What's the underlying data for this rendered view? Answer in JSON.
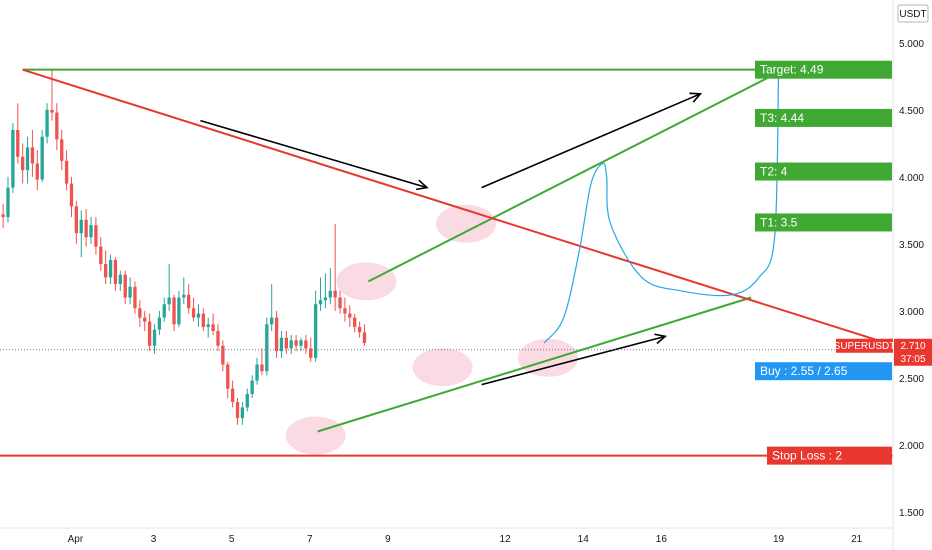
{
  "chart_data": {
    "type": "candlestick",
    "currency_label": "USDT",
    "ylim": [
      1.38,
      5.32
    ],
    "y_ticks": [
      {
        "value": 5.0,
        "label": "5.000"
      },
      {
        "value": 4.5,
        "label": "4.500"
      },
      {
        "value": 4.0,
        "label": "4.000"
      },
      {
        "value": 3.5,
        "label": "3.500"
      },
      {
        "value": 3.0,
        "label": "3.000"
      },
      {
        "value": 2.5,
        "label": "2.500"
      },
      {
        "value": 2.0,
        "label": "2.000"
      },
      {
        "value": 1.5,
        "label": "1.500"
      }
    ],
    "x_ticks": [
      {
        "day": 1,
        "label": "Apr"
      },
      {
        "day": 3,
        "label": "3"
      },
      {
        "day": 5,
        "label": "5"
      },
      {
        "day": 7,
        "label": "7"
      },
      {
        "day": 9,
        "label": "9"
      },
      {
        "day": 12,
        "label": "12"
      },
      {
        "day": 14,
        "label": "14"
      },
      {
        "day": 16,
        "label": "16"
      },
      {
        "day": 19,
        "label": "19"
      },
      {
        "day": 21,
        "label": "21"
      }
    ],
    "xlim_days": [
      -0.93,
      21.93
    ],
    "candle_interval_days": 0.125,
    "candles_start_day": -0.85,
    "candles": [
      [
        3.72,
        3.8,
        3.62,
        3.7
      ],
      [
        3.7,
        4.0,
        3.66,
        3.92
      ],
      [
        3.92,
        4.4,
        3.88,
        4.35
      ],
      [
        4.35,
        4.55,
        4.1,
        4.15
      ],
      [
        4.15,
        4.25,
        3.95,
        4.05
      ],
      [
        4.05,
        4.3,
        3.95,
        4.22
      ],
      [
        4.22,
        4.35,
        4.0,
        4.1
      ],
      [
        4.1,
        4.2,
        3.9,
        3.98
      ],
      [
        3.98,
        4.35,
        3.96,
        4.3
      ],
      [
        4.3,
        4.55,
        4.25,
        4.5
      ],
      [
        4.5,
        4.8,
        4.42,
        4.48
      ],
      [
        4.48,
        4.55,
        4.2,
        4.28
      ],
      [
        4.28,
        4.35,
        4.05,
        4.12
      ],
      [
        4.12,
        4.2,
        3.9,
        3.95
      ],
      [
        3.95,
        4.0,
        3.7,
        3.78
      ],
      [
        3.78,
        3.82,
        3.5,
        3.58
      ],
      [
        3.58,
        3.75,
        3.4,
        3.68
      ],
      [
        3.68,
        3.76,
        3.48,
        3.55
      ],
      [
        3.55,
        3.7,
        3.5,
        3.64
      ],
      [
        3.64,
        3.7,
        3.42,
        3.48
      ],
      [
        3.48,
        3.55,
        3.3,
        3.35
      ],
      [
        3.35,
        3.45,
        3.2,
        3.25
      ],
      [
        3.25,
        3.42,
        3.2,
        3.38
      ],
      [
        3.38,
        3.4,
        3.15,
        3.2
      ],
      [
        3.2,
        3.3,
        3.15,
        3.27
      ],
      [
        3.27,
        3.3,
        3.05,
        3.1
      ],
      [
        3.1,
        3.25,
        3.05,
        3.18
      ],
      [
        3.18,
        3.22,
        2.98,
        3.02
      ],
      [
        3.02,
        3.08,
        2.88,
        2.95
      ],
      [
        2.95,
        3.0,
        2.85,
        2.92
      ],
      [
        2.92,
        2.98,
        2.7,
        2.74
      ],
      [
        2.74,
        2.9,
        2.68,
        2.86
      ],
      [
        2.86,
        3.0,
        2.82,
        2.95
      ],
      [
        2.95,
        3.1,
        2.92,
        3.05
      ],
      [
        3.05,
        3.35,
        3.0,
        3.1
      ],
      [
        3.1,
        3.12,
        2.85,
        2.9
      ],
      [
        2.9,
        3.15,
        2.88,
        3.1
      ],
      [
        3.1,
        3.25,
        3.05,
        3.12
      ],
      [
        3.12,
        3.2,
        2.98,
        3.02
      ],
      [
        3.02,
        3.1,
        2.92,
        2.95
      ],
      [
        2.95,
        3.05,
        2.88,
        2.98
      ],
      [
        2.98,
        3.02,
        2.85,
        2.88
      ],
      [
        2.88,
        2.95,
        2.8,
        2.9
      ],
      [
        2.9,
        2.98,
        2.82,
        2.85
      ],
      [
        2.85,
        2.9,
        2.7,
        2.74
      ],
      [
        2.74,
        2.78,
        2.55,
        2.6
      ],
      [
        2.6,
        2.62,
        2.35,
        2.42
      ],
      [
        2.42,
        2.48,
        2.28,
        2.32
      ],
      [
        2.32,
        2.35,
        2.15,
        2.2
      ],
      [
        2.2,
        2.32,
        2.15,
        2.28
      ],
      [
        2.28,
        2.42,
        2.25,
        2.38
      ],
      [
        2.38,
        2.52,
        2.35,
        2.48
      ],
      [
        2.48,
        2.65,
        2.45,
        2.6
      ],
      [
        2.6,
        2.72,
        2.52,
        2.55
      ],
      [
        2.55,
        2.95,
        2.52,
        2.9
      ],
      [
        2.9,
        3.2,
        2.85,
        2.95
      ],
      [
        2.95,
        3.0,
        2.65,
        2.7
      ],
      [
        2.7,
        2.85,
        2.65,
        2.8
      ],
      [
        2.8,
        2.85,
        2.68,
        2.72
      ],
      [
        2.72,
        2.82,
        2.68,
        2.78
      ],
      [
        2.78,
        2.82,
        2.7,
        2.74
      ],
      [
        2.74,
        2.8,
        2.7,
        2.78
      ],
      [
        2.78,
        2.82,
        2.68,
        2.72
      ],
      [
        2.72,
        2.8,
        2.62,
        2.65
      ],
      [
        2.65,
        3.15,
        2.62,
        3.05
      ],
      [
        3.05,
        3.25,
        3.0,
        3.08
      ],
      [
        3.08,
        3.28,
        3.02,
        3.1
      ],
      [
        3.1,
        3.32,
        3.05,
        3.15
      ],
      [
        3.15,
        3.65,
        3.0,
        3.1
      ],
      [
        3.1,
        3.15,
        2.98,
        3.02
      ],
      [
        3.02,
        3.1,
        2.92,
        2.98
      ],
      [
        2.98,
        3.04,
        2.88,
        2.95
      ],
      [
        2.95,
        2.98,
        2.84,
        2.88
      ],
      [
        2.88,
        2.92,
        2.8,
        2.84
      ],
      [
        2.84,
        2.9,
        2.74,
        2.76
      ]
    ]
  },
  "lines": [
    {
      "name": "target-level-line",
      "color": "#3fa933",
      "points": [
        [
          -0.35,
          4.8
        ],
        [
          19.2,
          4.8
        ]
      ]
    },
    {
      "name": "upper-channel-line",
      "color": "#3fa933",
      "points": [
        [
          8.5,
          3.22
        ],
        [
          19.0,
          4.78
        ]
      ]
    },
    {
      "name": "lower-support-line",
      "color": "#3fa933",
      "points": [
        [
          7.2,
          2.1
        ],
        [
          18.3,
          3.1
        ]
      ]
    },
    {
      "name": "descending-resistance-line",
      "color": "#e9372f",
      "points": [
        [
          -0.35,
          4.8
        ],
        [
          22.2,
          2.72
        ]
      ]
    },
    {
      "name": "stop-loss-line",
      "color": "#e9372f",
      "points": [
        [
          -0.93,
          1.92
        ],
        [
          22.2,
          1.92
        ]
      ]
    }
  ],
  "projection_path": {
    "color": "#29a8e0",
    "points": [
      [
        13.0,
        2.76
      ],
      [
        13.5,
        2.95
      ],
      [
        13.9,
        3.45
      ],
      [
        14.2,
        3.95
      ],
      [
        14.5,
        4.1
      ],
      [
        14.6,
        4.0
      ],
      [
        14.7,
        3.65
      ],
      [
        15.5,
        3.25
      ],
      [
        16.5,
        3.15
      ],
      [
        17.8,
        3.12
      ],
      [
        18.5,
        3.25
      ],
      [
        18.9,
        3.55
      ],
      [
        19.0,
        4.78
      ]
    ]
  },
  "arrows": [
    {
      "name": "down-arrow",
      "from": [
        4.2,
        4.42
      ],
      "to": [
        10.0,
        3.92
      ]
    },
    {
      "name": "up-arrow-upper",
      "from": [
        11.4,
        3.92
      ],
      "to": [
        17.0,
        4.62
      ]
    },
    {
      "name": "up-arrow-lower",
      "from": [
        11.4,
        2.45
      ],
      "to": [
        16.1,
        2.81
      ]
    }
  ],
  "highlights": [
    {
      "name": "pivot-circle-low",
      "center": [
        7.15,
        2.07
      ]
    },
    {
      "name": "pivot-circle-breakout",
      "center": [
        8.45,
        3.22
      ]
    },
    {
      "name": "pivot-circle-mid",
      "center": [
        10.4,
        2.58
      ]
    },
    {
      "name": "pivot-circle-peak",
      "center": [
        11.0,
        3.65
      ]
    },
    {
      "name": "pivot-circle-current",
      "center": [
        13.1,
        2.65
      ]
    }
  ],
  "labels": {
    "target": {
      "text": "Target: 4.49",
      "value": 4.8,
      "color": "#3fa933"
    },
    "t3": {
      "text": "T3: 4.44",
      "value": 4.44,
      "color": "#3fa933"
    },
    "t2": {
      "text": "T2: 4",
      "value": 4.04,
      "color": "#3fa933"
    },
    "t1": {
      "text": "T1: 3.5",
      "value": 3.66,
      "color": "#3fa933"
    },
    "stop_loss": {
      "text": "Stop Loss : 2",
      "value": 1.92,
      "color": "#e9372f"
    },
    "buy": {
      "text": "Buy :  2.55 / 2.65",
      "value": 2.55,
      "color": "#2196f3"
    }
  },
  "price_tag": {
    "symbol": "SUPERUSDT",
    "price": "2.710",
    "countdown": "37:05",
    "value": 2.71,
    "color": "#e9372f"
  },
  "colors": {
    "up": "#26a69a",
    "down": "#ef5350",
    "highlight": "#f8c7d6",
    "arrow": "#000000",
    "axis_text": "#131722"
  }
}
